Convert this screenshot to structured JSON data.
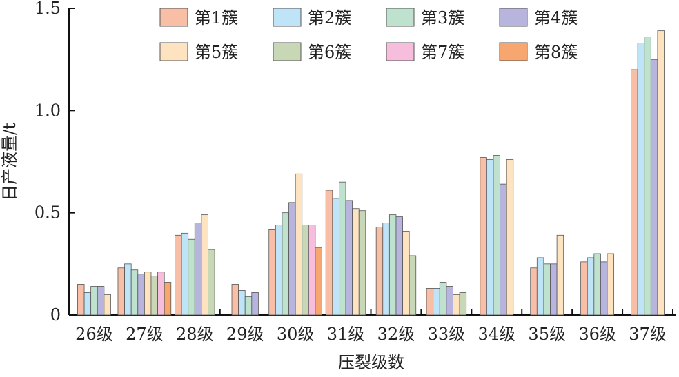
{
  "chart_data": {
    "type": "bar",
    "title": "",
    "xlabel": "压裂级数",
    "ylabel": "日产液量/t",
    "ylim": [
      0,
      1.5
    ],
    "yticks": [
      "0",
      "0.5",
      "1.0",
      "1.5"
    ],
    "grid": false,
    "legend_position": "top",
    "categories": [
      "26级",
      "27级",
      "28级",
      "29级",
      "30级",
      "31级",
      "32级",
      "33级",
      "34级",
      "35级",
      "36级",
      "37级"
    ],
    "series": [
      {
        "name": "第1簇",
        "color": "#f8bfa6",
        "values": [
          0.15,
          0.23,
          0.39,
          0.15,
          0.42,
          0.61,
          0.43,
          0.13,
          0.77,
          0.23,
          0.26,
          1.2
        ]
      },
      {
        "name": "第2簇",
        "color": "#bfe4f7",
        "values": [
          0.11,
          0.25,
          0.4,
          0.12,
          0.44,
          0.57,
          0.45,
          0.13,
          0.76,
          0.28,
          0.28,
          1.33
        ]
      },
      {
        "name": "第3簇",
        "color": "#bfe2cf",
        "values": [
          0.14,
          0.22,
          0.37,
          0.09,
          0.5,
          0.65,
          0.49,
          0.16,
          0.78,
          0.25,
          0.3,
          1.36
        ]
      },
      {
        "name": "第4簇",
        "color": "#b7b5de",
        "values": [
          0.14,
          0.2,
          0.45,
          0.11,
          0.55,
          0.56,
          0.48,
          0.14,
          0.64,
          0.25,
          0.26,
          1.25
        ]
      },
      {
        "name": "第5簇",
        "color": "#fde3bf",
        "values": [
          0.1,
          0.21,
          0.49,
          null,
          0.69,
          0.52,
          0.41,
          0.1,
          0.76,
          0.39,
          0.3,
          1.39
        ]
      },
      {
        "name": "第6簇",
        "color": "#c8d8b7",
        "values": [
          null,
          0.19,
          0.32,
          null,
          0.44,
          0.51,
          0.29,
          0.11,
          null,
          null,
          null,
          null
        ]
      },
      {
        "name": "第7簇",
        "color": "#f6bddc",
        "values": [
          null,
          0.21,
          null,
          null,
          0.44,
          null,
          null,
          null,
          null,
          null,
          null,
          null
        ]
      },
      {
        "name": "第8簇",
        "color": "#f6a66e",
        "values": [
          null,
          0.16,
          null,
          null,
          0.33,
          null,
          null,
          null,
          null,
          null,
          null,
          null
        ]
      }
    ]
  }
}
